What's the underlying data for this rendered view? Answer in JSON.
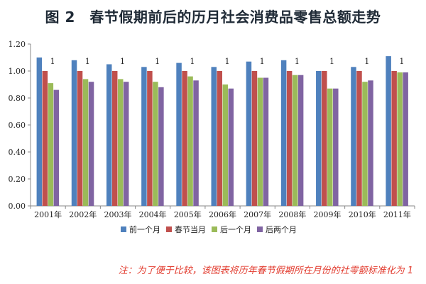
{
  "chart_data": {
    "type": "bar",
    "title": "图 2　春节假期前后的历月社会消费品零售总额走势",
    "xlabel": "",
    "ylabel": "",
    "ylim": [
      0,
      1.2
    ],
    "yticks": [
      "0.00",
      "0.20",
      "0.40",
      "0.60",
      "0.80",
      "1.00",
      "1.20"
    ],
    "grid": false,
    "legend_position": "bottom",
    "categories": [
      "2001年",
      "2002年",
      "2003年",
      "2004年",
      "2005年",
      "2006年",
      "2007年",
      "2008年",
      "2009年",
      "2010年",
      "2011年"
    ],
    "series": [
      {
        "name": "前一个月",
        "color": "#4f81bd",
        "values": [
          1.1,
          1.08,
          1.05,
          1.03,
          1.06,
          1.03,
          1.07,
          1.08,
          1.0,
          1.03,
          1.11
        ]
      },
      {
        "name": "春节当月",
        "color": "#c0504d",
        "values": [
          1.0,
          1.0,
          1.0,
          1.0,
          1.0,
          1.0,
          1.0,
          1.0,
          1.0,
          1.0,
          1.0
        ]
      },
      {
        "name": "后一个月",
        "color": "#9bbb59",
        "values": [
          0.91,
          0.94,
          0.94,
          0.92,
          0.96,
          0.9,
          0.95,
          0.97,
          0.87,
          0.92,
          0.99
        ]
      },
      {
        "name": "后两个月",
        "color": "#8064a2",
        "values": [
          0.86,
          0.92,
          0.92,
          0.88,
          0.93,
          0.87,
          0.95,
          0.97,
          0.87,
          0.93,
          0.99
        ]
      }
    ],
    "annotations": [
      "1",
      "1",
      "1",
      "1",
      "1",
      "1",
      "1",
      "1",
      "1",
      "1",
      "1"
    ],
    "note": "注：为了便于比较，该图表将历年春节假期所在月份的社零额标准化为 1"
  }
}
